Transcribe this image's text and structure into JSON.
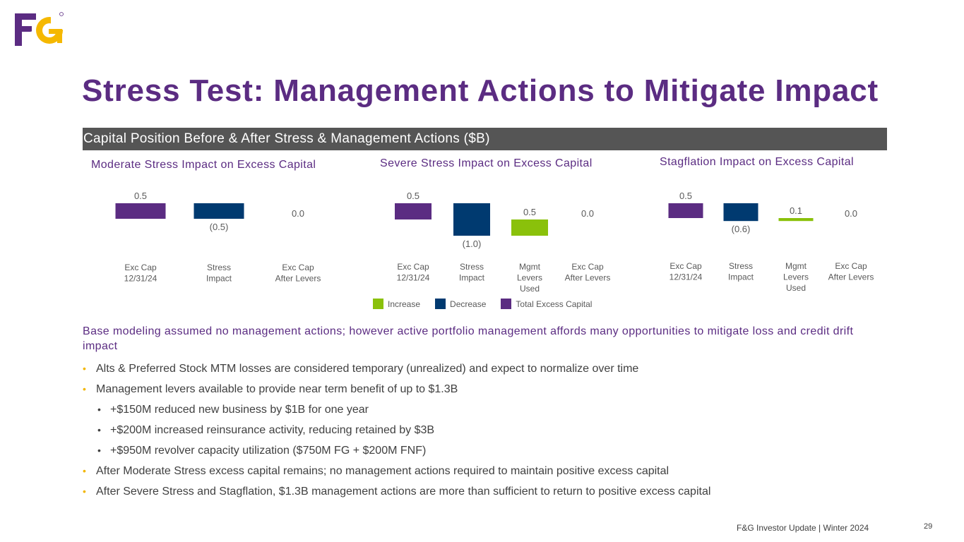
{
  "logo": {
    "text": "F&G",
    "alt": "F&G logo"
  },
  "title": "Stress Test: Management Actions to Mitigate Impact",
  "section_header": "Capital Position Before & After Stress & Management Actions ($B)",
  "colors": {
    "increase": "#8ac10b",
    "decrease": "#003a70",
    "total": "#5b2c82",
    "title": "#5b2c82",
    "bullet": "#f2b600"
  },
  "chart_data": [
    {
      "type": "bar",
      "subtype": "waterfall",
      "title": "Moderate Stress Impact on Excess Capital",
      "categories": [
        "Exc Cap 12/31/24",
        "Stress Impact",
        "Exc Cap After Levers"
      ],
      "values": [
        0.5,
        -0.5,
        0.0
      ],
      "labels": [
        "0.5",
        "(0.5)",
        "0.0"
      ],
      "kinds": [
        "total",
        "decrease",
        "total"
      ]
    },
    {
      "type": "bar",
      "subtype": "waterfall",
      "title": "Severe Stress Impact on Excess Capital",
      "categories": [
        "Exc Cap 12/31/24",
        "Stress Impact",
        "Mgmt Levers Used",
        "Exc Cap After Levers"
      ],
      "values": [
        0.5,
        -1.0,
        0.5,
        0.0
      ],
      "labels": [
        "0.5",
        "(1.0)",
        "0.5",
        "0.0"
      ],
      "kinds": [
        "total",
        "decrease",
        "increase",
        "total"
      ]
    },
    {
      "type": "bar",
      "subtype": "waterfall",
      "title": "Stagflation Impact on Excess Capital",
      "categories": [
        "Exc Cap 12/31/24",
        "Stress Impact",
        "Mgmt Levers Used",
        "Exc Cap After Levers"
      ],
      "values": [
        0.5,
        -0.6,
        0.1,
        0.0
      ],
      "labels": [
        "0.5",
        "(0.6)",
        "0.1",
        "0.0"
      ],
      "kinds": [
        "total",
        "decrease",
        "increase",
        "total"
      ]
    }
  ],
  "legend": [
    {
      "label": "Increase",
      "color": "#8ac10b"
    },
    {
      "label": "Decrease",
      "color": "#003a70"
    },
    {
      "label": "Total Excess Capital",
      "color": "#5b2c82"
    }
  ],
  "lead_text": "Base modeling assumed no management actions; however active portfolio management affords many opportunities to mitigate loss and credit drift impact",
  "bullets": [
    {
      "level": 1,
      "text": "Alts & Preferred Stock MTM losses are considered temporary (unrealized) and expect to normalize over time"
    },
    {
      "level": 1,
      "text": "Management levers available to provide near term benefit of up to $1.3B"
    },
    {
      "level": 2,
      "text": "+$150M reduced new business by $1B for one year"
    },
    {
      "level": 2,
      "text": "+$200M increased reinsurance activity, reducing retained by $3B"
    },
    {
      "level": 2,
      "text": "+$950M revolver capacity utilization ($750M FG + $200M FNF)"
    },
    {
      "level": 1,
      "text": "After Moderate Stress excess capital remains; no management actions required to maintain positive excess capital"
    },
    {
      "level": 1,
      "text": "After Severe Stress and Stagflation, $1.3B management actions are more than sufficient to return to positive excess capital"
    }
  ],
  "bullet_marker": "•",
  "footer": "F&G Investor Update | Winter 2024",
  "page_number": "29"
}
